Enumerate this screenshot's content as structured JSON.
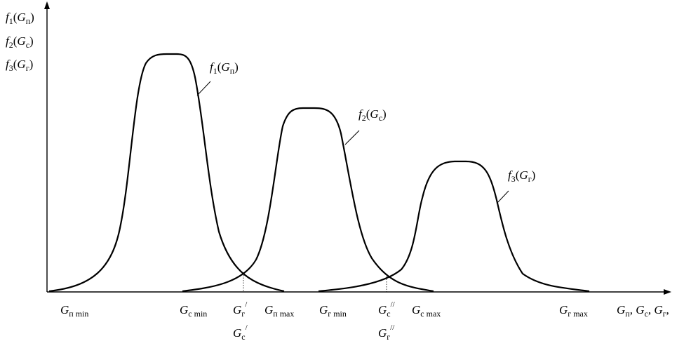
{
  "y_axis_labels": [
    {
      "sym": "f",
      "idx": "1",
      "var": "G",
      "sub": "п"
    },
    {
      "sym": "f",
      "idx": "2",
      "var": "G",
      "sub": "с"
    },
    {
      "sym": "f",
      "idx": "3",
      "var": "G",
      "sub": "г"
    }
  ],
  "curves": [
    {
      "sym": "f",
      "idx": "1",
      "var": "G",
      "sub": "п"
    },
    {
      "sym": "f",
      "idx": "2",
      "var": "G",
      "sub": "с"
    },
    {
      "sym": "f",
      "idx": "3",
      "var": "G",
      "sub": "г"
    }
  ],
  "x_ticks": [
    {
      "var": "G",
      "sub": "п min"
    },
    {
      "var": "G",
      "sub": "с min"
    },
    {
      "var": "G",
      "sub": "г",
      "sup": "/"
    },
    {
      "var": "G",
      "sub": "п max"
    },
    {
      "var": "G",
      "sub": "г min"
    },
    {
      "var": "G",
      "sub": "с",
      "sup": "//"
    },
    {
      "var": "G",
      "sub": "с max"
    },
    {
      "var": "G",
      "sub": "г max"
    }
  ],
  "x_ticks_second_row": [
    {
      "var": "G",
      "sub": "с",
      "sup": "/"
    },
    {
      "var": "G",
      "sub": "г",
      "sup": "//"
    }
  ],
  "x_axis_label": [
    {
      "var": "G",
      "sub": "п",
      "sep": ", "
    },
    {
      "var": "G",
      "sub": "с",
      "sep": ", "
    },
    {
      "var": "G",
      "sub": "г",
      "sep": ","
    }
  ]
}
